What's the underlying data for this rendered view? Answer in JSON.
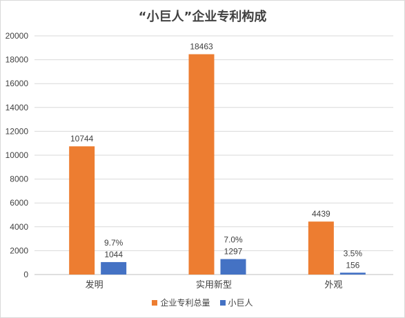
{
  "chart_data": {
    "type": "bar",
    "title": "“小巨人”企业专利构成",
    "categories": [
      "发明",
      "实用新型",
      "外观"
    ],
    "series": [
      {
        "name": "企业专利总量",
        "color": "#ed7d31",
        "values": [
          10744,
          18463,
          4439
        ],
        "labels": [
          "10744",
          "18463",
          "4439"
        ]
      },
      {
        "name": "小巨人",
        "color": "#4472c4",
        "values": [
          1044,
          1297,
          156
        ],
        "labels": [
          "1044",
          "1297",
          "156"
        ],
        "percent_labels": [
          "9.7%",
          "7.0%",
          "3.5%"
        ]
      }
    ],
    "ylim": [
      0,
      20000
    ],
    "yticks": [
      0,
      2000,
      4000,
      6000,
      8000,
      10000,
      12000,
      14000,
      16000,
      18000,
      20000
    ],
    "grid": true,
    "legend_position": "bottom"
  }
}
